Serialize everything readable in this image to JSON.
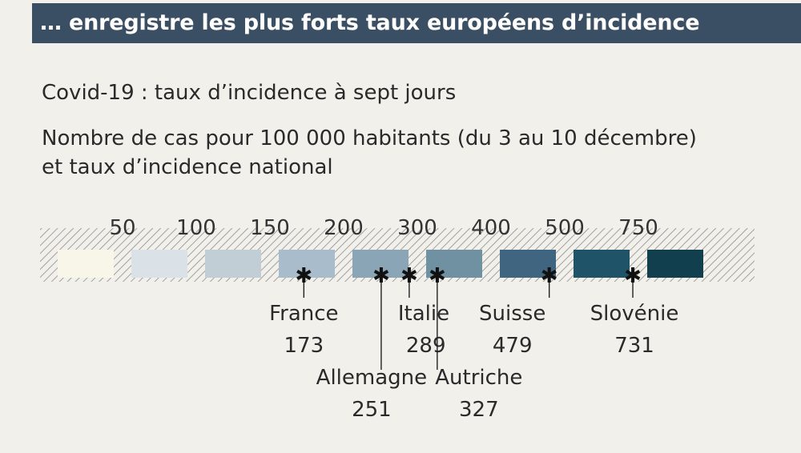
{
  "header": {
    "title": "… enregistre les plus forts taux européens d’incidence"
  },
  "subtitle": "Covid-19 : taux d’incidence à sept jours",
  "description_line1": "Nombre de cas pour 100 000 habitants (du 3 au 10 décembre)",
  "description_line2": "et taux d’incidence national",
  "colors": {
    "header_bg": "#3a4f64",
    "bins": [
      "#f8f6e8",
      "#dbe2e7",
      "#c2ced6",
      "#a9bccb",
      "#8aa5b6",
      "#6f91a2",
      "#3f6580",
      "#1f5468",
      "#123f4e"
    ]
  },
  "chart_data": {
    "type": "scale",
    "thresholds": [
      50,
      100,
      150,
      200,
      300,
      400,
      500,
      750
    ],
    "countries": [
      {
        "name": "France",
        "value": 173,
        "value_label": "173"
      },
      {
        "name": "Allemagne",
        "value": 251,
        "value_label": "251"
      },
      {
        "name": "Italie",
        "value": 289,
        "value_label": "289"
      },
      {
        "name": "Autriche",
        "value": 327,
        "value_label": "327"
      },
      {
        "name": "Suisse",
        "value": 479,
        "value_label": "479"
      },
      {
        "name": "Slovénie",
        "value": 731,
        "value_label": "731"
      }
    ]
  }
}
